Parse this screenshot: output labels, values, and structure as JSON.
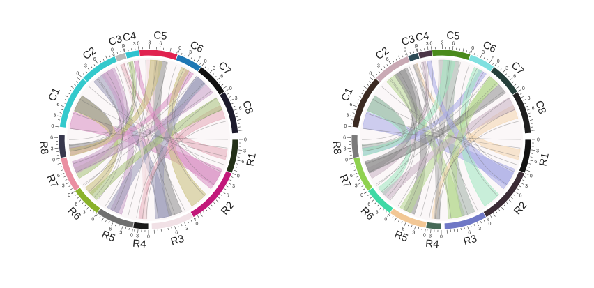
{
  "diagrams": [
    {
      "name": "left",
      "segments": [
        {
          "label": "C1",
          "color": "#33c9cc"
        },
        {
          "label": "C2",
          "color": "#33c9cc"
        },
        {
          "label": "C3",
          "color": "#b9b9b9"
        },
        {
          "label": "C4",
          "color": "#2ec2cf"
        },
        {
          "label": "C5",
          "color": "#e0224f"
        },
        {
          "label": "C6",
          "color": "#1f78b4"
        },
        {
          "label": "C7",
          "color": "#111111"
        },
        {
          "label": "C8",
          "color": "#1c1a2b"
        },
        {
          "label": "R1",
          "color": "#233018"
        },
        {
          "label": "R2",
          "color": "#c2187a"
        },
        {
          "label": "R3",
          "color": "#f1e1e6"
        },
        {
          "label": "R4",
          "color": "#1b1b1b"
        },
        {
          "label": "R5",
          "color": "#707070"
        },
        {
          "label": "R6",
          "color": "#8ab22a"
        },
        {
          "label": "R7",
          "color": "#ea8fa2"
        },
        {
          "label": "R8",
          "color": "#37374d"
        }
      ],
      "ribbon_colors": [
        "#d98fc2",
        "#c9c07a",
        "#9a9ab8",
        "#c8a0c8",
        "#e6a9b8",
        "#a8c27a",
        "#8f8f8f",
        "#f2d9dc"
      ]
    },
    {
      "name": "right",
      "segments": [
        {
          "label": "C1",
          "color": "#3b2a22"
        },
        {
          "label": "C2",
          "color": "#c9a9b4"
        },
        {
          "label": "C3",
          "color": "#2d4a55"
        },
        {
          "label": "C4",
          "color": "#4b3546"
        },
        {
          "label": "C5",
          "color": "#4a8a1c"
        },
        {
          "label": "C6",
          "color": "#7fe0e0"
        },
        {
          "label": "C7",
          "color": "#253f3a"
        },
        {
          "label": "C8",
          "color": "#1f1f1f"
        },
        {
          "label": "R1",
          "color": "#121212"
        },
        {
          "label": "R2",
          "color": "#3b2b35"
        },
        {
          "label": "R3",
          "color": "#6f78c6"
        },
        {
          "label": "R4",
          "color": "#466a57"
        },
        {
          "label": "R5",
          "color": "#f2c795"
        },
        {
          "label": "R6",
          "color": "#3fd9a5"
        },
        {
          "label": "R7",
          "color": "#8fd14f"
        },
        {
          "label": "R8",
          "color": "#7b7b7b"
        }
      ],
      "ribbon_colors": [
        "#a7a9e6",
        "#9fe8c0",
        "#b7d98f",
        "#8f8f8f",
        "#f4d6ad",
        "#c9b3c2",
        "#a3b3a8",
        "#b0b0b0"
      ]
    }
  ],
  "tick_labels": [
    "0",
    "3",
    "6"
  ]
}
